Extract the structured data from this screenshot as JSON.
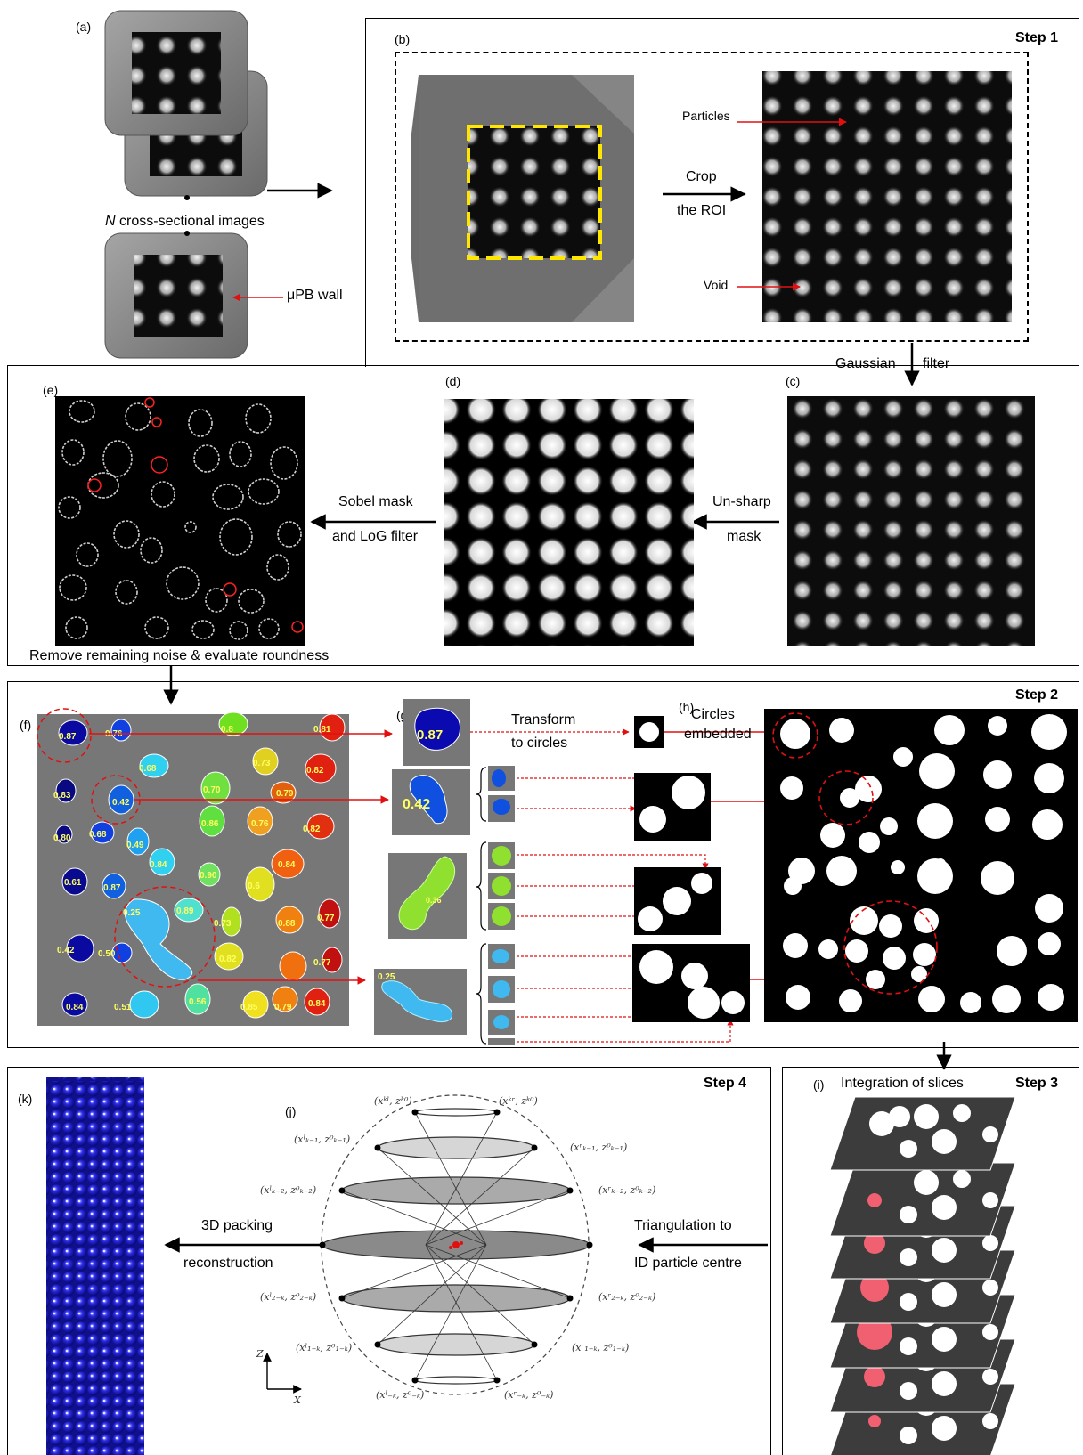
{
  "panels": {
    "a": "(a)",
    "b": "(b)",
    "c": "(c)",
    "d": "(d)",
    "e": "(e)",
    "f": "(f)",
    "g": "(g)",
    "h": "(h)",
    "i": "(i)",
    "j": "(j)",
    "k": "(k)"
  },
  "steps": {
    "s1": "Step 1",
    "s2": "Step 2",
    "s3": "Step 3",
    "s4": "Step 4"
  },
  "labels": {
    "n_images_n": "N",
    "n_images_rest": " cross-sectional images",
    "upb_wall": "μPB wall",
    "crop_1": "Crop",
    "crop_2": "the ROI",
    "particles": "Particles",
    "void": "Void",
    "gaussian_1": "Gaussian",
    "gaussian_2": "filter",
    "unsharp_1": "Un-sharp",
    "unsharp_2": "mask",
    "sobel_1": "Sobel mask",
    "sobel_2": "and LoG filter",
    "remove_noise": "Remove remaining noise & evaluate roundness",
    "transform_1": "Transform",
    "transform_2": "to circles",
    "circles_1": "Circles",
    "circles_2": "embedded",
    "integration": "Integration of slices",
    "tri_1": "Triangulation to",
    "tri_2": "ID particle centre",
    "pack_1": "3D packing",
    "pack_2": "reconstruction"
  },
  "roundness_values": [
    "0.87",
    "0.76",
    "0.8",
    "0.81",
    "0.68",
    "0.73",
    "0.82",
    "0.42",
    "0.70",
    "0.79",
    "0.83",
    "0.80",
    "0.68",
    "0.86",
    "0.76",
    "0.82",
    "0.49",
    "0.84",
    "0.84",
    "0.90",
    "0.6",
    "0.61",
    "0.87",
    "0.25",
    "0.89",
    "0.73",
    "0.88",
    "0.77",
    "0.42",
    "0.50",
    "0.82",
    "0.77",
    "0.84",
    "0.51",
    "0.56",
    "0.85",
    "0.79",
    "0.84"
  ],
  "zoom_values": [
    "0.87",
    "0.42",
    "0.36",
    "0.25"
  ],
  "math_labels": {
    "top_l": "(xᵏˡ, zᵏ⁰)",
    "top_r": "(xᵏʳ, zᵏ⁰)",
    "k1_l": "(xˡₖ₋₁, z⁰ₖ₋₁)",
    "k1_r": "(xʳₖ₋₁, z⁰ₖ₋₁)",
    "k2_l": "(xˡₖ₋₂, z⁰ₖ₋₂)",
    "k2_r": "(xʳₖ₋₂, z⁰ₖ₋₂)",
    "m2_l": "(xˡ₂₋ₖ, z⁰₂₋ₖ)",
    "m2_r": "(xʳ₂₋ₖ, z⁰₂₋ₖ)",
    "m1_l": "(xˡ₁₋ₖ, z⁰₁₋ₖ)",
    "m1_r": "(xʳ₁₋ₖ, z⁰₁₋ₖ)",
    "bot_l": "(xˡ₋ₖ, z⁰₋ₖ)",
    "bot_r": "(xʳ₋ₖ, z⁰₋ₖ)",
    "axis_z": "Z",
    "axis_x": "X"
  },
  "colors": {
    "arrow_red": "#e01010",
    "roi_yellow": "#ffe600",
    "particle_blue": "#1a1ad0"
  }
}
